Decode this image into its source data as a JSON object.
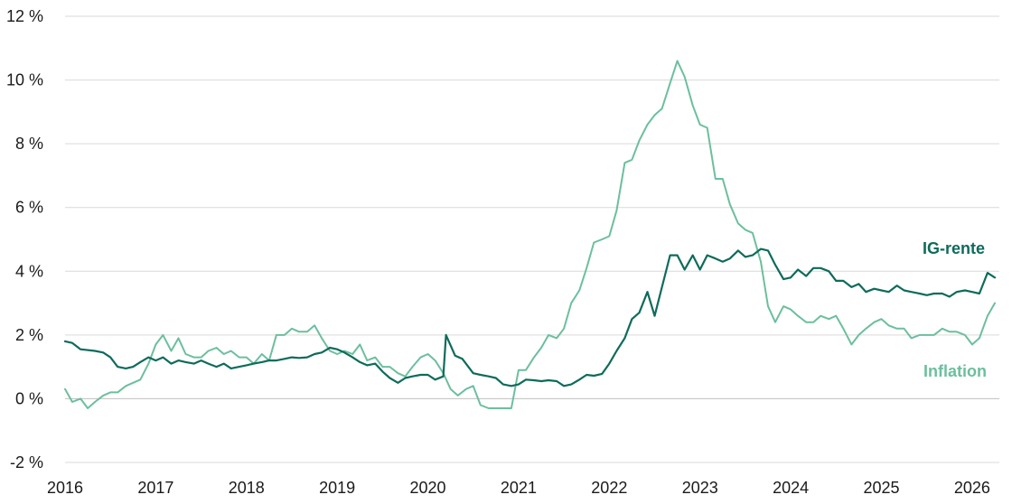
{
  "chart_data": {
    "type": "line",
    "title": "",
    "xlabel": "",
    "ylabel": "",
    "x_range": [
      2016.0,
      2026.3
    ],
    "ylim": [
      -2,
      12
    ],
    "y_ticks": [
      {
        "value": -2,
        "label": "-2 %"
      },
      {
        "value": 0,
        "label": "0 %"
      },
      {
        "value": 2,
        "label": "2 %"
      },
      {
        "value": 4,
        "label": "4 %"
      },
      {
        "value": 6,
        "label": "6 %"
      },
      {
        "value": 8,
        "label": "8 %"
      },
      {
        "value": 10,
        "label": "10 %"
      },
      {
        "value": 12,
        "label": "12 %"
      }
    ],
    "x_ticks": [
      {
        "value": 2016,
        "label": "2016"
      },
      {
        "value": 2017,
        "label": "2017"
      },
      {
        "value": 2018,
        "label": "2018"
      },
      {
        "value": 2019,
        "label": "2019"
      },
      {
        "value": 2020,
        "label": "2020"
      },
      {
        "value": 2021,
        "label": "2021"
      },
      {
        "value": 2022,
        "label": "2022"
      },
      {
        "value": 2023,
        "label": "2023"
      },
      {
        "value": 2024,
        "label": "2024"
      },
      {
        "value": 2025,
        "label": "2025"
      },
      {
        "value": 2026,
        "label": "2026"
      }
    ],
    "grid": "horizontal",
    "series": [
      {
        "name": "IG-rente",
        "color": "#0e6b5c",
        "points": [
          [
            2016.0,
            1.8
          ],
          [
            2016.08,
            1.75
          ],
          [
            2016.17,
            1.55
          ],
          [
            2016.33,
            1.5
          ],
          [
            2016.42,
            1.45
          ],
          [
            2016.5,
            1.3
          ],
          [
            2016.58,
            1.0
          ],
          [
            2016.67,
            0.95
          ],
          [
            2016.75,
            1.0
          ],
          [
            2016.83,
            1.15
          ],
          [
            2016.92,
            1.3
          ],
          [
            2017.0,
            1.2
          ],
          [
            2017.08,
            1.3
          ],
          [
            2017.17,
            1.1
          ],
          [
            2017.25,
            1.2
          ],
          [
            2017.33,
            1.15
          ],
          [
            2017.42,
            1.1
          ],
          [
            2017.5,
            1.2
          ],
          [
            2017.58,
            1.1
          ],
          [
            2017.67,
            1.0
          ],
          [
            2017.75,
            1.1
          ],
          [
            2017.83,
            0.95
          ],
          [
            2017.92,
            1.0
          ],
          [
            2018.0,
            1.05
          ],
          [
            2018.08,
            1.1
          ],
          [
            2018.17,
            1.15
          ],
          [
            2018.25,
            1.2
          ],
          [
            2018.33,
            1.2
          ],
          [
            2018.42,
            1.25
          ],
          [
            2018.5,
            1.3
          ],
          [
            2018.58,
            1.28
          ],
          [
            2018.67,
            1.3
          ],
          [
            2018.75,
            1.4
          ],
          [
            2018.83,
            1.45
          ],
          [
            2018.92,
            1.6
          ],
          [
            2019.0,
            1.55
          ],
          [
            2019.08,
            1.45
          ],
          [
            2019.17,
            1.3
          ],
          [
            2019.25,
            1.15
          ],
          [
            2019.33,
            1.05
          ],
          [
            2019.42,
            1.1
          ],
          [
            2019.5,
            0.85
          ],
          [
            2019.58,
            0.65
          ],
          [
            2019.67,
            0.5
          ],
          [
            2019.75,
            0.65
          ],
          [
            2019.83,
            0.7
          ],
          [
            2019.92,
            0.75
          ],
          [
            2020.0,
            0.75
          ],
          [
            2020.08,
            0.6
          ],
          [
            2020.17,
            0.7
          ],
          [
            2020.2,
            2.0
          ],
          [
            2020.3,
            1.35
          ],
          [
            2020.38,
            1.25
          ],
          [
            2020.5,
            0.8
          ],
          [
            2020.58,
            0.75
          ],
          [
            2020.67,
            0.7
          ],
          [
            2020.75,
            0.65
          ],
          [
            2020.83,
            0.45
          ],
          [
            2020.92,
            0.4
          ],
          [
            2021.0,
            0.45
          ],
          [
            2021.08,
            0.6
          ],
          [
            2021.17,
            0.58
          ],
          [
            2021.25,
            0.55
          ],
          [
            2021.33,
            0.58
          ],
          [
            2021.42,
            0.55
          ],
          [
            2021.5,
            0.4
          ],
          [
            2021.58,
            0.45
          ],
          [
            2021.67,
            0.6
          ],
          [
            2021.75,
            0.75
          ],
          [
            2021.83,
            0.72
          ],
          [
            2021.92,
            0.78
          ],
          [
            2022.0,
            1.1
          ],
          [
            2022.08,
            1.5
          ],
          [
            2022.17,
            1.9
          ],
          [
            2022.25,
            2.5
          ],
          [
            2022.33,
            2.7
          ],
          [
            2022.42,
            3.35
          ],
          [
            2022.5,
            2.6
          ],
          [
            2022.58,
            3.5
          ],
          [
            2022.67,
            4.5
          ],
          [
            2022.75,
            4.5
          ],
          [
            2022.83,
            4.05
          ],
          [
            2022.92,
            4.5
          ],
          [
            2023.0,
            4.05
          ],
          [
            2023.08,
            4.5
          ],
          [
            2023.17,
            4.4
          ],
          [
            2023.25,
            4.3
          ],
          [
            2023.33,
            4.4
          ],
          [
            2023.42,
            4.65
          ],
          [
            2023.5,
            4.45
          ],
          [
            2023.58,
            4.5
          ],
          [
            2023.67,
            4.7
          ],
          [
            2023.75,
            4.65
          ],
          [
            2023.83,
            4.2
          ],
          [
            2023.92,
            3.75
          ],
          [
            2024.0,
            3.8
          ],
          [
            2024.08,
            4.05
          ],
          [
            2024.17,
            3.85
          ],
          [
            2024.25,
            4.1
          ],
          [
            2024.33,
            4.1
          ],
          [
            2024.42,
            4.0
          ],
          [
            2024.5,
            3.7
          ],
          [
            2024.58,
            3.7
          ],
          [
            2024.67,
            3.5
          ],
          [
            2024.75,
            3.6
          ],
          [
            2024.83,
            3.35
          ],
          [
            2024.92,
            3.45
          ],
          [
            2025.0,
            3.4
          ],
          [
            2025.08,
            3.35
          ],
          [
            2025.17,
            3.55
          ],
          [
            2025.25,
            3.4
          ],
          [
            2025.33,
            3.35
          ],
          [
            2025.42,
            3.3
          ],
          [
            2025.5,
            3.25
          ],
          [
            2025.58,
            3.3
          ],
          [
            2025.67,
            3.3
          ],
          [
            2025.75,
            3.2
          ],
          [
            2025.83,
            3.35
          ],
          [
            2025.92,
            3.4
          ],
          [
            2026.0,
            3.35
          ],
          [
            2026.08,
            3.3
          ],
          [
            2026.17,
            3.95
          ],
          [
            2026.25,
            3.8
          ]
        ]
      },
      {
        "name": "Inflation",
        "color": "#6cbf9e",
        "points": [
          [
            2016.0,
            0.3
          ],
          [
            2016.08,
            -0.1
          ],
          [
            2016.17,
            0.0
          ],
          [
            2016.25,
            -0.3
          ],
          [
            2016.33,
            -0.1
          ],
          [
            2016.42,
            0.1
          ],
          [
            2016.5,
            0.2
          ],
          [
            2016.58,
            0.2
          ],
          [
            2016.67,
            0.4
          ],
          [
            2016.75,
            0.5
          ],
          [
            2016.83,
            0.6
          ],
          [
            2016.92,
            1.1
          ],
          [
            2017.0,
            1.7
          ],
          [
            2017.08,
            2.0
          ],
          [
            2017.17,
            1.5
          ],
          [
            2017.25,
            1.9
          ],
          [
            2017.33,
            1.4
          ],
          [
            2017.42,
            1.3
          ],
          [
            2017.5,
            1.3
          ],
          [
            2017.58,
            1.5
          ],
          [
            2017.67,
            1.6
          ],
          [
            2017.75,
            1.4
          ],
          [
            2017.83,
            1.5
          ],
          [
            2017.92,
            1.3
          ],
          [
            2018.0,
            1.3
          ],
          [
            2018.08,
            1.1
          ],
          [
            2018.17,
            1.4
          ],
          [
            2018.25,
            1.2
          ],
          [
            2018.33,
            2.0
          ],
          [
            2018.42,
            2.0
          ],
          [
            2018.5,
            2.2
          ],
          [
            2018.58,
            2.1
          ],
          [
            2018.67,
            2.1
          ],
          [
            2018.75,
            2.3
          ],
          [
            2018.83,
            1.9
          ],
          [
            2018.92,
            1.5
          ],
          [
            2019.0,
            1.4
          ],
          [
            2019.08,
            1.5
          ],
          [
            2019.17,
            1.4
          ],
          [
            2019.25,
            1.7
          ],
          [
            2019.33,
            1.2
          ],
          [
            2019.42,
            1.3
          ],
          [
            2019.5,
            1.0
          ],
          [
            2019.58,
            1.0
          ],
          [
            2019.67,
            0.8
          ],
          [
            2019.75,
            0.7
          ],
          [
            2019.83,
            1.0
          ],
          [
            2019.92,
            1.3
          ],
          [
            2020.0,
            1.4
          ],
          [
            2020.08,
            1.2
          ],
          [
            2020.17,
            0.8
          ],
          [
            2020.25,
            0.3
          ],
          [
            2020.33,
            0.1
          ],
          [
            2020.42,
            0.3
          ],
          [
            2020.5,
            0.4
          ],
          [
            2020.58,
            -0.2
          ],
          [
            2020.67,
            -0.3
          ],
          [
            2020.75,
            -0.3
          ],
          [
            2020.83,
            -0.3
          ],
          [
            2020.92,
            -0.3
          ],
          [
            2021.0,
            0.9
          ],
          [
            2021.08,
            0.9
          ],
          [
            2021.17,
            1.3
          ],
          [
            2021.25,
            1.6
          ],
          [
            2021.33,
            2.0
          ],
          [
            2021.42,
            1.9
          ],
          [
            2021.5,
            2.2
          ],
          [
            2021.58,
            3.0
          ],
          [
            2021.67,
            3.4
          ],
          [
            2021.75,
            4.1
          ],
          [
            2021.83,
            4.9
          ],
          [
            2021.92,
            5.0
          ],
          [
            2022.0,
            5.1
          ],
          [
            2022.08,
            5.9
          ],
          [
            2022.17,
            7.4
          ],
          [
            2022.25,
            7.5
          ],
          [
            2022.33,
            8.1
          ],
          [
            2022.42,
            8.6
          ],
          [
            2022.5,
            8.9
          ],
          [
            2022.58,
            9.1
          ],
          [
            2022.67,
            9.9
          ],
          [
            2022.75,
            10.6
          ],
          [
            2022.83,
            10.1
          ],
          [
            2022.92,
            9.2
          ],
          [
            2023.0,
            8.6
          ],
          [
            2023.08,
            8.5
          ],
          [
            2023.17,
            6.9
          ],
          [
            2023.25,
            6.9
          ],
          [
            2023.33,
            6.1
          ],
          [
            2023.42,
            5.5
          ],
          [
            2023.5,
            5.3
          ],
          [
            2023.58,
            5.2
          ],
          [
            2023.67,
            4.3
          ],
          [
            2023.75,
            2.9
          ],
          [
            2023.83,
            2.4
          ],
          [
            2023.92,
            2.9
          ],
          [
            2024.0,
            2.8
          ],
          [
            2024.08,
            2.6
          ],
          [
            2024.17,
            2.4
          ],
          [
            2024.25,
            2.4
          ],
          [
            2024.33,
            2.6
          ],
          [
            2024.42,
            2.5
          ],
          [
            2024.5,
            2.6
          ],
          [
            2024.58,
            2.2
          ],
          [
            2024.67,
            1.7
          ],
          [
            2024.75,
            2.0
          ],
          [
            2024.83,
            2.2
          ],
          [
            2024.92,
            2.4
          ],
          [
            2025.0,
            2.5
          ],
          [
            2025.08,
            2.3
          ],
          [
            2025.17,
            2.2
          ],
          [
            2025.25,
            2.2
          ],
          [
            2025.33,
            1.9
          ],
          [
            2025.42,
            2.0
          ],
          [
            2025.5,
            2.0
          ],
          [
            2025.58,
            2.0
          ],
          [
            2025.67,
            2.2
          ],
          [
            2025.75,
            2.1
          ],
          [
            2025.83,
            2.1
          ],
          [
            2025.92,
            2.0
          ],
          [
            2026.0,
            1.7
          ],
          [
            2026.08,
            1.9
          ],
          [
            2026.17,
            2.6
          ],
          [
            2026.25,
            3.0
          ]
        ]
      }
    ]
  }
}
